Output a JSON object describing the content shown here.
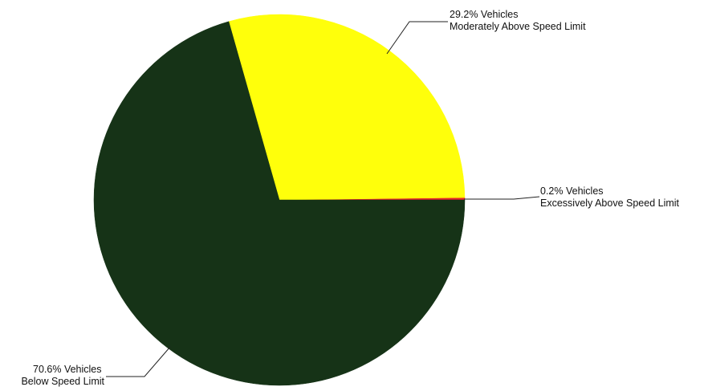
{
  "chart_data": {
    "type": "pie",
    "title": "",
    "legend": "none",
    "start_angle_deg": 0,
    "direction": "counterclockwise",
    "slices": [
      {
        "key": "excessive",
        "value": 0.2,
        "color": "#e8242a",
        "label_line1": "0.2%  Vehicles",
        "label_line2": "Excessively Above Speed Limit"
      },
      {
        "key": "moderate",
        "value": 29.2,
        "color": "#ffff0b",
        "label_line1": "29.2%  Vehicles",
        "label_line2": "Moderately Above Speed Limit"
      },
      {
        "key": "below",
        "value": 70.6,
        "color": "#163317",
        "label_line1": "70.6%  Vehicles",
        "label_line2": "Below Speed Limit"
      }
    ]
  }
}
